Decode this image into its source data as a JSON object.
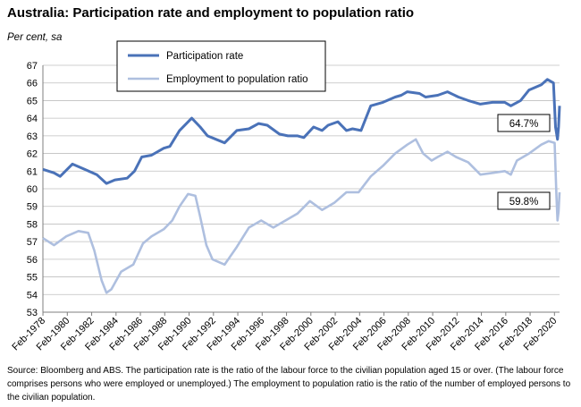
{
  "title": "Australia: Participation rate and employment to population ratio",
  "subtitle": "Per cent, sa",
  "source_note": "Source: Bloomberg and ABS.  The participation rate is the ratio of the labour force to the civilian population aged 15 or over. (The labour force comprises persons who were employed or unemployed.)  The employment to population ratio is the ratio of the number of employed persons to the civilian population.",
  "colors": {
    "participation": "#4a72b8",
    "employment": "#aebfdf"
  },
  "chart_data": {
    "type": "line",
    "ylim": [
      53,
      67
    ],
    "y_ticks": [
      "53",
      "54",
      "55",
      "56",
      "57",
      "58",
      "59",
      "60",
      "61",
      "62",
      "63",
      "64",
      "65",
      "66",
      "67"
    ],
    "x_range": [
      1978.08,
      2020.5
    ],
    "x_ticks": [
      "Feb-1978",
      "Feb-1980",
      "Feb-1982",
      "Feb-1984",
      "Feb-1986",
      "Feb-1988",
      "Feb-1990",
      "Feb-1992",
      "Feb-1994",
      "Feb-1996",
      "Feb-1998",
      "Feb-2000",
      "Feb-2002",
      "Feb-2004",
      "Feb-2006",
      "Feb-2008",
      "Feb-2010",
      "Feb-2012",
      "Feb-2014",
      "Feb-2016",
      "Feb-2018",
      "Feb-2020"
    ],
    "legend": {
      "placement": "top-left-inside",
      "box": true
    },
    "grid": {
      "horizontal": true,
      "vertical": false
    },
    "series": [
      {
        "name": "Participation rate",
        "x": [
          1978.08,
          1979.0,
          1979.5,
          1980.5,
          1981.5,
          1982.5,
          1983.3,
          1984.0,
          1985.0,
          1985.6,
          1986.2,
          1987.0,
          1988.0,
          1988.5,
          1989.3,
          1990.3,
          1991.0,
          1991.6,
          1992.3,
          1993.0,
          1994.0,
          1995.0,
          1995.8,
          1996.5,
          1997.5,
          1998.2,
          1999.0,
          1999.5,
          2000.3,
          2001.0,
          2001.5,
          2002.3,
          2003.0,
          2003.5,
          2004.2,
          2005.0,
          2006.0,
          2007.0,
          2007.5,
          2008.0,
          2009.0,
          2009.5,
          2010.5,
          2011.3,
          2012.2,
          2013.0,
          2014.0,
          2015.0,
          2016.0,
          2016.5,
          2017.3,
          2018.0,
          2019.0,
          2019.5,
          2020.0,
          2020.17,
          2020.33,
          2020.42,
          2020.5
        ],
        "values": [
          61.1,
          60.9,
          60.7,
          61.4,
          61.1,
          60.8,
          60.3,
          60.5,
          60.6,
          61.0,
          61.8,
          61.9,
          62.3,
          62.4,
          63.3,
          64.0,
          63.5,
          63.0,
          62.8,
          62.6,
          63.3,
          63.4,
          63.7,
          63.6,
          63.1,
          63.0,
          63.0,
          62.9,
          63.5,
          63.3,
          63.6,
          63.8,
          63.3,
          63.4,
          63.3,
          64.7,
          64.9,
          65.2,
          65.3,
          65.5,
          65.4,
          65.2,
          65.3,
          65.5,
          65.2,
          65.0,
          64.8,
          64.9,
          64.9,
          64.7,
          65.0,
          65.6,
          65.9,
          66.2,
          66.0,
          63.5,
          62.8,
          63.5,
          64.7
        ]
      },
      {
        "name": "Employment to population ratio",
        "x": [
          1978.08,
          1979.0,
          1980.0,
          1981.0,
          1981.8,
          1982.3,
          1982.9,
          1983.3,
          1983.7,
          1984.5,
          1985.5,
          1986.3,
          1987.0,
          1988.0,
          1988.7,
          1989.3,
          1990.0,
          1990.6,
          1991.0,
          1991.5,
          1992.0,
          1993.0,
          1994.0,
          1995.0,
          1996.0,
          1997.0,
          1998.0,
          1999.0,
          2000.0,
          2001.0,
          2002.0,
          2003.0,
          2004.0,
          2005.0,
          2006.0,
          2007.0,
          2008.0,
          2008.7,
          2009.3,
          2010.0,
          2010.5,
          2011.3,
          2012.0,
          2013.0,
          2014.0,
          2015.0,
          2016.0,
          2016.5,
          2017.0,
          2018.0,
          2019.0,
          2019.6,
          2020.1,
          2020.25,
          2020.33,
          2020.42,
          2020.5
        ],
        "values": [
          57.2,
          56.8,
          57.3,
          57.6,
          57.5,
          56.5,
          54.8,
          54.1,
          54.3,
          55.3,
          55.7,
          56.9,
          57.3,
          57.7,
          58.2,
          59.0,
          59.7,
          59.6,
          58.4,
          56.8,
          56.0,
          55.7,
          56.7,
          57.8,
          58.2,
          57.8,
          58.2,
          58.6,
          59.3,
          58.8,
          59.2,
          59.8,
          59.8,
          60.7,
          61.3,
          62.0,
          62.5,
          62.8,
          62.0,
          61.6,
          61.8,
          62.1,
          61.8,
          61.5,
          60.8,
          60.9,
          61.0,
          60.8,
          61.6,
          62.0,
          62.5,
          62.7,
          62.6,
          59.5,
          58.2,
          58.7,
          59.8
        ]
      }
    ],
    "annotations": [
      {
        "text": "64.7%",
        "target_series": 0
      },
      {
        "text": "59.8%",
        "target_series": 1
      }
    ]
  }
}
